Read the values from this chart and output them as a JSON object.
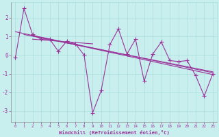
{
  "xlabel": "Windchill (Refroidissement éolien,°C)",
  "background_color": "#c8eeee",
  "grid_color": "#aadddd",
  "line_color": "#993399",
  "xlim": [
    -0.5,
    23.5
  ],
  "ylim": [
    -3.6,
    2.85
  ],
  "yticks": [
    -3,
    -2,
    -1,
    0,
    1,
    2
  ],
  "xticks": [
    0,
    1,
    2,
    3,
    4,
    5,
    6,
    7,
    8,
    9,
    10,
    11,
    12,
    13,
    14,
    15,
    16,
    17,
    18,
    19,
    20,
    21,
    22,
    23
  ],
  "series1": [
    [
      0,
      -0.15
    ],
    [
      1,
      2.5
    ],
    [
      2,
      1.1
    ],
    [
      3,
      0.85
    ],
    [
      4,
      0.85
    ],
    [
      5,
      0.2
    ],
    [
      6,
      0.75
    ],
    [
      7,
      0.6
    ],
    [
      8,
      0.0
    ],
    [
      9,
      -3.1
    ],
    [
      10,
      -1.9
    ],
    [
      11,
      0.55
    ],
    [
      12,
      1.4
    ],
    [
      13,
      0.05
    ],
    [
      14,
      0.85
    ],
    [
      15,
      -1.4
    ],
    [
      16,
      0.05
    ],
    [
      17,
      0.7
    ],
    [
      18,
      -0.3
    ],
    [
      19,
      -0.35
    ],
    [
      20,
      -0.3
    ],
    [
      21,
      -1.1
    ],
    [
      22,
      -2.2
    ],
    [
      23,
      -1.0
    ]
  ],
  "trend_lines": [
    {
      "x": [
        0,
        23
      ],
      "y": [
        1.25,
        -1.05
      ]
    },
    {
      "x": [
        1,
        23
      ],
      "y": [
        1.1,
        -0.9
      ]
    },
    {
      "x": [
        2,
        23
      ],
      "y": [
        1.05,
        -0.95
      ]
    },
    {
      "x": [
        2,
        9
      ],
      "y": [
        0.85,
        0.6
      ]
    }
  ],
  "marker": "+",
  "markersize": 4,
  "linewidth": 0.8
}
